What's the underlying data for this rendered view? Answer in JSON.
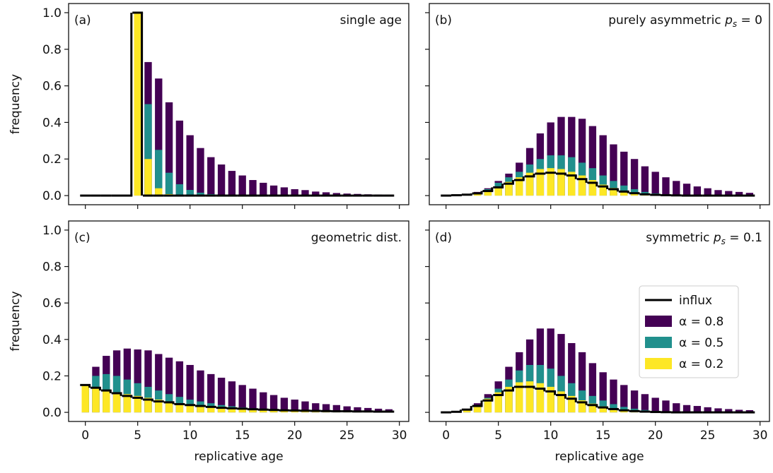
{
  "chart_data": [
    {
      "type": "bar",
      "panel": "(a)",
      "annotation": {
        "prefix": "single age"
      },
      "x": [
        0,
        1,
        2,
        3,
        4,
        5,
        6,
        7,
        8,
        9,
        10,
        11,
        12,
        13,
        14,
        15,
        16,
        17,
        18,
        19,
        20,
        21,
        22,
        23,
        24,
        25,
        26,
        27,
        28,
        29
      ],
      "xlim": [
        -1.6,
        30.9
      ],
      "ylim": [
        -0.05,
        1.05
      ],
      "xticks": [
        0,
        5,
        10,
        15,
        20,
        25,
        30
      ],
      "yticks": [
        0.0,
        0.2,
        0.4,
        0.6,
        0.8,
        1.0
      ],
      "show_xtick_labels": false,
      "show_ytick_labels": true,
      "ylabel": "frequency",
      "legend": false,
      "series": [
        {
          "name": "influx",
          "color": "#000000",
          "style": "step",
          "values": [
            0,
            0,
            0,
            0,
            0,
            1.0,
            0,
            0,
            0,
            0,
            0,
            0,
            0,
            0,
            0,
            0,
            0,
            0,
            0,
            0,
            0,
            0,
            0,
            0,
            0,
            0,
            0,
            0,
            0,
            0
          ]
        },
        {
          "name": "α = 0.8",
          "color": "#440154",
          "values": [
            0,
            0,
            0,
            0,
            0,
            1.0,
            0.73,
            0.64,
            0.51,
            0.41,
            0.33,
            0.26,
            0.21,
            0.17,
            0.135,
            0.11,
            0.085,
            0.07,
            0.055,
            0.045,
            0.035,
            0.03,
            0.022,
            0.018,
            0.014,
            0.011,
            0.009,
            0.007,
            0.006,
            0.005
          ]
        },
        {
          "name": "α = 0.5",
          "color": "#21908d",
          "values": [
            0,
            0,
            0,
            0,
            0,
            1.0,
            0.5,
            0.25,
            0.125,
            0.062,
            0.031,
            0.016,
            0.008,
            0.004,
            0.002,
            0.001,
            0,
            0,
            0,
            0,
            0,
            0,
            0,
            0,
            0,
            0,
            0,
            0,
            0,
            0
          ]
        },
        {
          "name": "α = 0.2",
          "color": "#fde725",
          "values": [
            0,
            0,
            0,
            0,
            0,
            1.0,
            0.2,
            0.04,
            0.008,
            0.002,
            0,
            0,
            0,
            0,
            0,
            0,
            0,
            0,
            0,
            0,
            0,
            0,
            0,
            0,
            0,
            0,
            0,
            0,
            0,
            0
          ]
        }
      ]
    },
    {
      "type": "bar",
      "panel": "(b)",
      "annotation": {
        "prefix": "purely asymmetric ",
        "symbol": "p",
        "subscript": "s",
        "suffix": " = 0"
      },
      "x": [
        0,
        1,
        2,
        3,
        4,
        5,
        6,
        7,
        8,
        9,
        10,
        11,
        12,
        13,
        14,
        15,
        16,
        17,
        18,
        19,
        20,
        21,
        22,
        23,
        24,
        25,
        26,
        27,
        28,
        29
      ],
      "xlim": [
        -1.6,
        30.9
      ],
      "ylim": [
        -0.05,
        1.05
      ],
      "xticks": [
        0,
        5,
        10,
        15,
        20,
        25,
        30
      ],
      "yticks": [
        0.0,
        0.2,
        0.4,
        0.6,
        0.8,
        1.0
      ],
      "show_xtick_labels": false,
      "show_ytick_labels": false,
      "legend": false,
      "series": [
        {
          "name": "influx",
          "color": "#000000",
          "style": "step",
          "values": [
            0,
            0.002,
            0.005,
            0.012,
            0.025,
            0.045,
            0.065,
            0.085,
            0.105,
            0.12,
            0.125,
            0.12,
            0.11,
            0.09,
            0.07,
            0.05,
            0.035,
            0.022,
            0.013,
            0.007,
            0.004,
            0.002,
            0.001,
            0,
            0,
            0,
            0,
            0,
            0,
            0
          ]
        },
        {
          "name": "α = 0.8",
          "color": "#440154",
          "values": [
            0,
            0.003,
            0.008,
            0.02,
            0.04,
            0.08,
            0.12,
            0.18,
            0.26,
            0.34,
            0.4,
            0.43,
            0.43,
            0.42,
            0.38,
            0.33,
            0.28,
            0.24,
            0.2,
            0.16,
            0.13,
            0.1,
            0.08,
            0.065,
            0.05,
            0.04,
            0.03,
            0.025,
            0.02,
            0.015
          ]
        },
        {
          "name": "α = 0.5",
          "color": "#21908d",
          "values": [
            0,
            0.002,
            0.006,
            0.015,
            0.035,
            0.07,
            0.1,
            0.13,
            0.17,
            0.2,
            0.22,
            0.22,
            0.21,
            0.18,
            0.15,
            0.11,
            0.08,
            0.055,
            0.035,
            0.02,
            0.012,
            0.007,
            0.004,
            0.002,
            0.001,
            0,
            0,
            0,
            0,
            0
          ]
        },
        {
          "name": "α = 0.2",
          "color": "#fde725",
          "values": [
            0,
            0.002,
            0.005,
            0.013,
            0.028,
            0.05,
            0.075,
            0.1,
            0.125,
            0.145,
            0.15,
            0.145,
            0.13,
            0.11,
            0.085,
            0.06,
            0.042,
            0.027,
            0.016,
            0.009,
            0.005,
            0.002,
            0.001,
            0,
            0,
            0,
            0,
            0,
            0,
            0
          ]
        }
      ]
    },
    {
      "type": "bar",
      "panel": "(c)",
      "annotation": {
        "prefix": "geometric dist."
      },
      "x": [
        0,
        1,
        2,
        3,
        4,
        5,
        6,
        7,
        8,
        9,
        10,
        11,
        12,
        13,
        14,
        15,
        16,
        17,
        18,
        19,
        20,
        21,
        22,
        23,
        24,
        25,
        26,
        27,
        28,
        29
      ],
      "xlim": [
        -1.6,
        30.9
      ],
      "ylim": [
        -0.05,
        1.05
      ],
      "xticks": [
        0,
        5,
        10,
        15,
        20,
        25,
        30
      ],
      "yticks": [
        0.0,
        0.2,
        0.4,
        0.6,
        0.8,
        1.0
      ],
      "show_xtick_labels": true,
      "show_ytick_labels": true,
      "ylabel": "frequency",
      "xlabel": "replicative age",
      "legend": false,
      "series": [
        {
          "name": "influx",
          "color": "#000000",
          "style": "step",
          "values": [
            0.15,
            0.135,
            0.12,
            0.105,
            0.09,
            0.08,
            0.07,
            0.06,
            0.055,
            0.045,
            0.04,
            0.035,
            0.03,
            0.025,
            0.022,
            0.02,
            0.017,
            0.015,
            0.013,
            0.011,
            0.01,
            0.009,
            0.008,
            0.007,
            0.006,
            0.006,
            0.005,
            0.005,
            0.004,
            0.004
          ]
        },
        {
          "name": "α = 0.8",
          "color": "#440154",
          "values": [
            0.15,
            0.25,
            0.31,
            0.34,
            0.35,
            0.345,
            0.34,
            0.32,
            0.3,
            0.28,
            0.26,
            0.23,
            0.21,
            0.19,
            0.17,
            0.15,
            0.13,
            0.11,
            0.095,
            0.08,
            0.07,
            0.06,
            0.05,
            0.045,
            0.04,
            0.033,
            0.028,
            0.024,
            0.02,
            0.017
          ]
        },
        {
          "name": "α = 0.5",
          "color": "#21908d",
          "values": [
            0.15,
            0.2,
            0.21,
            0.2,
            0.18,
            0.16,
            0.14,
            0.12,
            0.1,
            0.085,
            0.07,
            0.06,
            0.05,
            0.04,
            0.033,
            0.027,
            0.022,
            0.018,
            0.015,
            0.012,
            0.01,
            0.008,
            0.007,
            0.006,
            0.005,
            0.004,
            0.004,
            0.003,
            0.003,
            0.002
          ]
        },
        {
          "name": "α = 0.2",
          "color": "#fde725",
          "values": [
            0.15,
            0.14,
            0.125,
            0.11,
            0.1,
            0.09,
            0.08,
            0.07,
            0.06,
            0.05,
            0.045,
            0.04,
            0.035,
            0.03,
            0.026,
            0.022,
            0.019,
            0.016,
            0.014,
            0.012,
            0.01,
            0.009,
            0.008,
            0.007,
            0.006,
            0.005,
            0.005,
            0.004,
            0.004,
            0.003
          ]
        }
      ]
    },
    {
      "type": "bar",
      "panel": "(d)",
      "annotation": {
        "prefix": "symmetric ",
        "symbol": "p",
        "subscript": "s",
        "suffix": " = 0.1"
      },
      "x": [
        0,
        1,
        2,
        3,
        4,
        5,
        6,
        7,
        8,
        9,
        10,
        11,
        12,
        13,
        14,
        15,
        16,
        17,
        18,
        19,
        20,
        21,
        22,
        23,
        24,
        25,
        26,
        27,
        28,
        29
      ],
      "xlim": [
        -1.6,
        30.9
      ],
      "ylim": [
        -0.05,
        1.05
      ],
      "xticks": [
        0,
        5,
        10,
        15,
        20,
        25,
        30
      ],
      "yticks": [
        0.0,
        0.2,
        0.4,
        0.6,
        0.8,
        1.0
      ],
      "show_xtick_labels": true,
      "show_ytick_labels": false,
      "xlabel": "replicative age",
      "legend": "center right",
      "series": [
        {
          "name": "influx",
          "color": "#000000",
          "style": "step",
          "values": [
            0,
            0.003,
            0.015,
            0.035,
            0.065,
            0.095,
            0.12,
            0.14,
            0.14,
            0.13,
            0.115,
            0.095,
            0.075,
            0.055,
            0.04,
            0.027,
            0.018,
            0.011,
            0.007,
            0.004,
            0.002,
            0.001,
            0,
            0,
            0,
            0,
            0,
            0,
            0,
            0
          ]
        },
        {
          "name": "α = 0.8",
          "color": "#440154",
          "values": [
            0,
            0.005,
            0.02,
            0.05,
            0.1,
            0.17,
            0.25,
            0.33,
            0.4,
            0.46,
            0.46,
            0.43,
            0.38,
            0.33,
            0.27,
            0.22,
            0.18,
            0.15,
            0.12,
            0.1,
            0.08,
            0.065,
            0.05,
            0.04,
            0.035,
            0.028,
            0.022,
            0.018,
            0.014,
            0.012
          ]
        },
        {
          "name": "α = 0.5",
          "color": "#21908d",
          "values": [
            0,
            0.004,
            0.018,
            0.04,
            0.08,
            0.13,
            0.18,
            0.23,
            0.26,
            0.26,
            0.24,
            0.2,
            0.16,
            0.12,
            0.09,
            0.065,
            0.045,
            0.03,
            0.02,
            0.013,
            0.008,
            0.005,
            0.003,
            0.002,
            0.001,
            0,
            0,
            0,
            0,
            0
          ]
        },
        {
          "name": "α = 0.2",
          "color": "#fde725",
          "values": [
            0,
            0.003,
            0.016,
            0.04,
            0.075,
            0.11,
            0.14,
            0.165,
            0.17,
            0.16,
            0.14,
            0.115,
            0.09,
            0.066,
            0.048,
            0.033,
            0.022,
            0.014,
            0.009,
            0.005,
            0.003,
            0.001,
            0,
            0,
            0,
            0,
            0,
            0,
            0,
            0
          ]
        }
      ]
    }
  ]
}
